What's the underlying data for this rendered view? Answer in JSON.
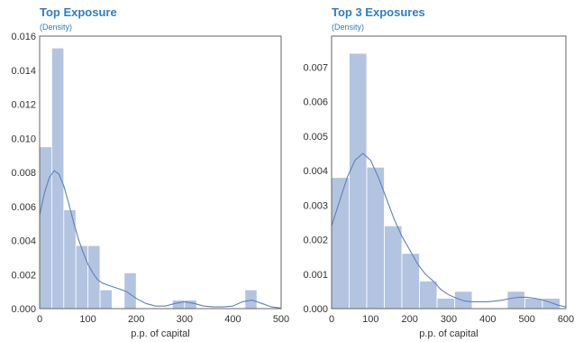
{
  "chart_data": [
    {
      "type": "bar",
      "title": "Top Exposure",
      "subtitle": "(Density)",
      "xlabel": "p.p. of capital",
      "ylabel": "",
      "xlim": [
        0,
        500
      ],
      "ylim": [
        0,
        0.016
      ],
      "xticks": [
        0,
        100,
        200,
        300,
        400,
        500
      ],
      "yticks": [
        0.0,
        0.002,
        0.004,
        0.006,
        0.008,
        0.01,
        0.012,
        0.014,
        0.016
      ],
      "ytick_decimals": 3,
      "bin_width": 25,
      "bins": [
        {
          "x0": 0,
          "x1": 25,
          "value": 0.0095
        },
        {
          "x0": 25,
          "x1": 50,
          "value": 0.0153
        },
        {
          "x0": 50,
          "x1": 75,
          "value": 0.0058
        },
        {
          "x0": 75,
          "x1": 100,
          "value": 0.0037
        },
        {
          "x0": 100,
          "x1": 125,
          "value": 0.0037
        },
        {
          "x0": 125,
          "x1": 150,
          "value": 0.0011
        },
        {
          "x0": 150,
          "x1": 175,
          "value": 0.0
        },
        {
          "x0": 175,
          "x1": 200,
          "value": 0.0021
        },
        {
          "x0": 275,
          "x1": 300,
          "value": 0.0005
        },
        {
          "x0": 300,
          "x1": 325,
          "value": 0.0005
        },
        {
          "x0": 425,
          "x1": 450,
          "value": 0.0011
        }
      ],
      "kde": {
        "x": [
          0,
          10,
          20,
          30,
          40,
          50,
          60,
          70,
          80,
          90,
          100,
          110,
          120,
          130,
          140,
          150,
          160,
          170,
          180,
          190,
          200,
          220,
          240,
          260,
          280,
          300,
          320,
          340,
          360,
          380,
          400,
          420,
          440,
          460,
          480,
          500
        ],
        "y": [
          0.0055,
          0.0068,
          0.0077,
          0.0081,
          0.0079,
          0.0072,
          0.0062,
          0.0051,
          0.0041,
          0.0033,
          0.0026,
          0.0021,
          0.0017,
          0.0015,
          0.0014,
          0.0013,
          0.0012,
          0.0011,
          0.001,
          0.0008,
          0.0006,
          0.0003,
          0.00015,
          0.00015,
          0.0003,
          0.0004,
          0.0003,
          0.00015,
          0.0001,
          0.0001,
          0.00015,
          0.0004,
          0.0005,
          0.0003,
          0.0001,
          3e-05
        ]
      },
      "bar_color": "#b3c4e1",
      "line_color": "#6080b8"
    },
    {
      "type": "bar",
      "title": "Top 3 Exposures",
      "subtitle": "(Density)",
      "xlabel": "p.p. of capital",
      "ylabel": "",
      "xlim": [
        0,
        600
      ],
      "ylim": [
        0,
        0.0079
      ],
      "xticks": [
        0,
        100,
        200,
        300,
        400,
        500,
        600
      ],
      "yticks": [
        0.0,
        0.001,
        0.002,
        0.003,
        0.004,
        0.005,
        0.006,
        0.007
      ],
      "ytick_decimals": 3,
      "bin_width": 45,
      "bins": [
        {
          "x0": 0,
          "x1": 45,
          "value": 0.0038
        },
        {
          "x0": 45,
          "x1": 90,
          "value": 0.0074
        },
        {
          "x0": 90,
          "x1": 135,
          "value": 0.0041
        },
        {
          "x0": 135,
          "x1": 180,
          "value": 0.0024
        },
        {
          "x0": 180,
          "x1": 225,
          "value": 0.0016
        },
        {
          "x0": 225,
          "x1": 270,
          "value": 0.0008
        },
        {
          "x0": 270,
          "x1": 315,
          "value": 0.0003
        },
        {
          "x0": 315,
          "x1": 360,
          "value": 0.0005
        },
        {
          "x0": 450,
          "x1": 495,
          "value": 0.0005
        },
        {
          "x0": 495,
          "x1": 540,
          "value": 0.0003
        },
        {
          "x0": 540,
          "x1": 585,
          "value": 0.0003
        }
      ],
      "kde": {
        "x": [
          0,
          20,
          40,
          60,
          80,
          100,
          120,
          140,
          160,
          180,
          200,
          220,
          240,
          260,
          280,
          300,
          320,
          340,
          360,
          380,
          400,
          420,
          440,
          460,
          480,
          500,
          520,
          540,
          560,
          580,
          600
        ],
        "y": [
          0.0024,
          0.0031,
          0.0038,
          0.0043,
          0.0045,
          0.0043,
          0.0038,
          0.0032,
          0.0026,
          0.0021,
          0.0017,
          0.0013,
          0.001,
          0.0008,
          0.00055,
          0.0004,
          0.0003,
          0.00022,
          0.0002,
          0.0002,
          0.0002,
          0.00022,
          0.00025,
          0.0003,
          0.00033,
          0.00033,
          0.0003,
          0.00025,
          0.00018,
          0.0001,
          5e-05
        ]
      },
      "bar_color": "#b3c4e1",
      "line_color": "#6080b8"
    }
  ]
}
